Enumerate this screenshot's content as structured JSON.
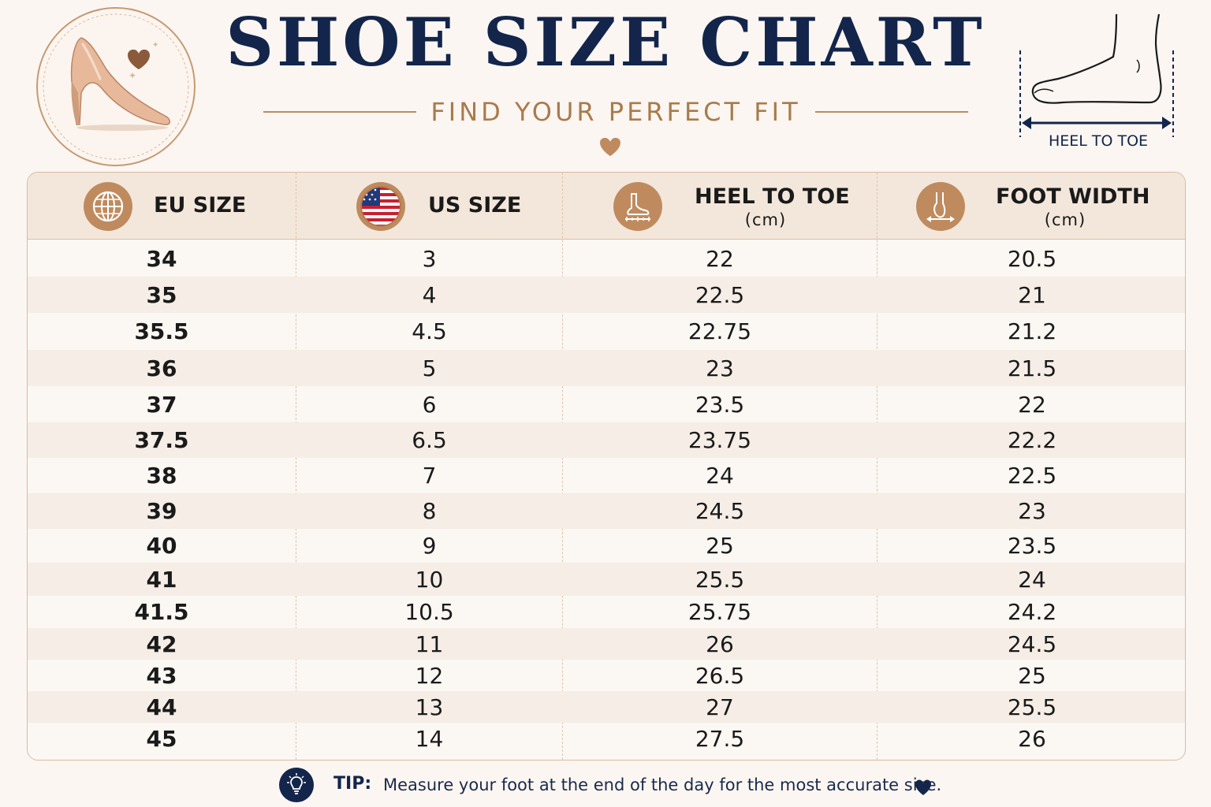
{
  "header": {
    "title": "SHOE SIZE CHART",
    "subtitle": "FIND YOUR PERFECT FIT",
    "diagram_label": "HEEL TO TOE"
  },
  "table": {
    "columns": [
      {
        "label": "EU SIZE",
        "unit": "",
        "icon": "globe-icon"
      },
      {
        "label": "US SIZE",
        "unit": "",
        "icon": "us-flag-icon"
      },
      {
        "label": "HEEL TO TOE",
        "unit": "(cm)",
        "icon": "foot-ruler-icon"
      },
      {
        "label": "FOOT WIDTH",
        "unit": "(cm)",
        "icon": "foot-width-icon"
      }
    ],
    "rows": [
      [
        "34",
        "3",
        "22",
        "20.5"
      ],
      [
        "35",
        "4",
        "22.5",
        "21"
      ],
      [
        "35.5",
        "4.5",
        "22.75",
        "21.2"
      ],
      [
        "36",
        "5",
        "23",
        "21.5"
      ],
      [
        "37",
        "6",
        "23.5",
        "22"
      ],
      [
        "37.5",
        "6.5",
        "23.75",
        "22.2"
      ],
      [
        "38",
        "7",
        "24",
        "22.5"
      ],
      [
        "39",
        "8",
        "24.5",
        "23"
      ],
      [
        "40",
        "9",
        "25",
        "23.5"
      ],
      [
        "41",
        "10",
        "25.5",
        "24"
      ],
      [
        "41.5",
        "10.5",
        "25.75",
        "24.2"
      ],
      [
        "42",
        "11",
        "26",
        "24.5"
      ],
      [
        "43",
        "12",
        "26.5",
        "25"
      ],
      [
        "44",
        "13",
        "27",
        "25.5"
      ],
      [
        "45",
        "14",
        "27.5",
        "26"
      ]
    ]
  },
  "tip": {
    "label": "TIP:",
    "text": "Measure your foot at the end of the day for the most accurate size."
  },
  "colors": {
    "navy": "#13254a",
    "accent": "#bf8b5e",
    "gold_text": "#a97b4b",
    "background": "#fbf6f2"
  },
  "icons": [
    "high-heel-shoe-icon",
    "heart-icon",
    "foot-outline-icon",
    "lightbulb-icon"
  ]
}
